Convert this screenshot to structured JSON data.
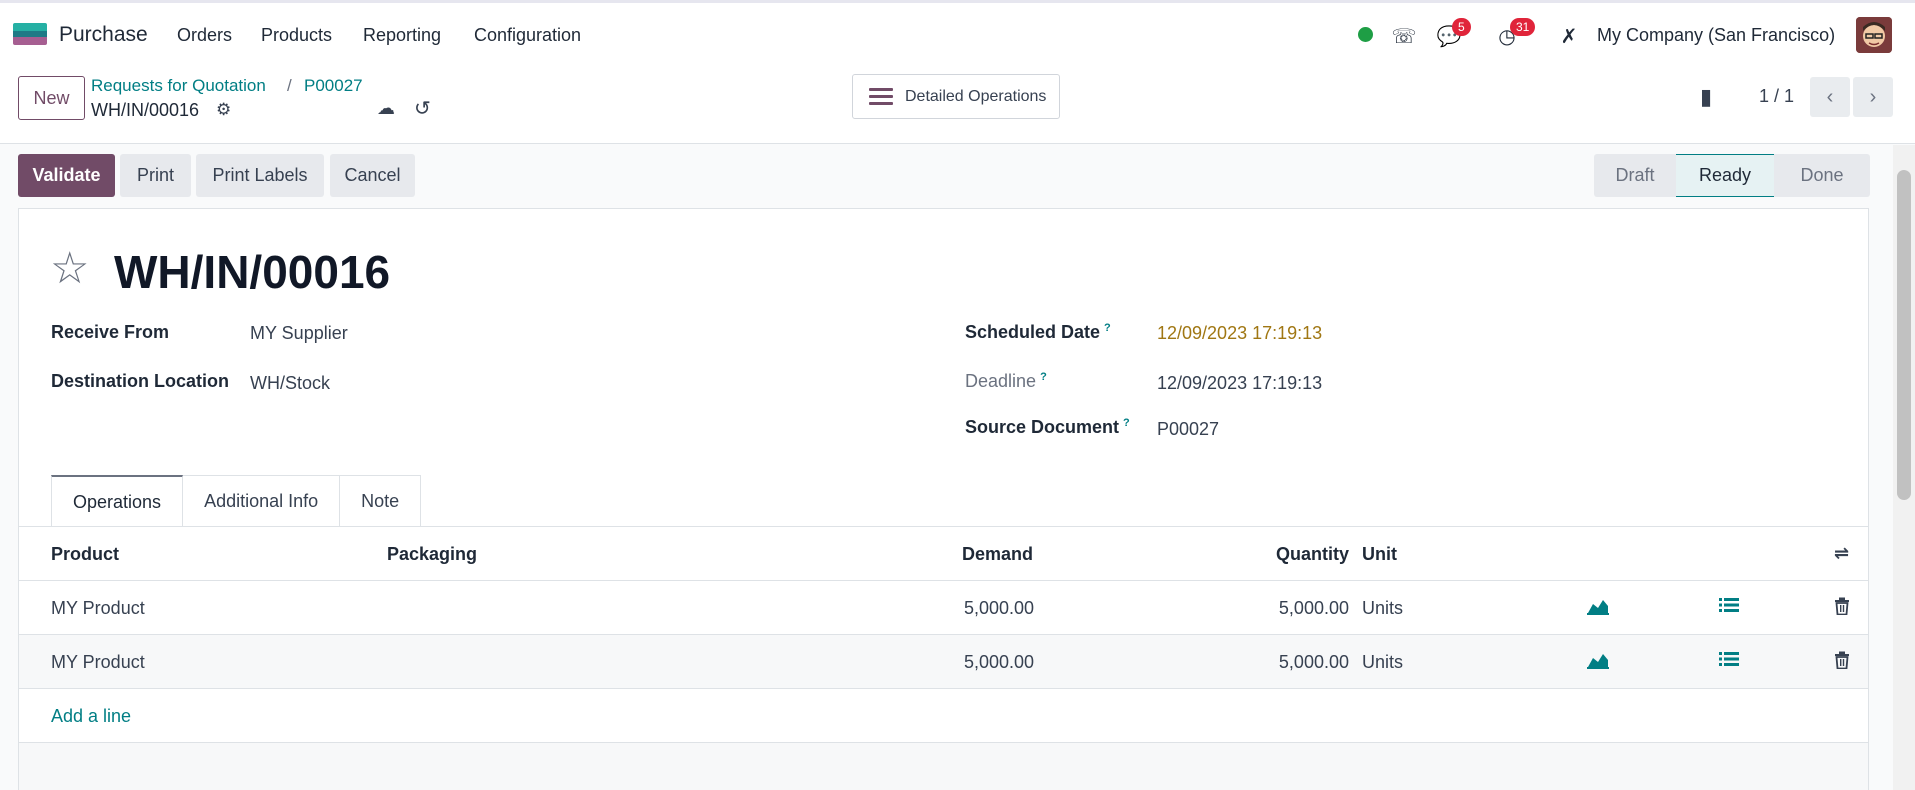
{
  "app": {
    "name": "Purchase"
  },
  "nav": {
    "menus": [
      "Orders",
      "Products",
      "Reporting",
      "Configuration"
    ]
  },
  "systray": {
    "messages_count": "5",
    "activities_count": "31",
    "company": "My Company (San Francisco)"
  },
  "breadcrumb": {
    "parent": "Requests for Quotation",
    "sep": "/",
    "po": "P00027",
    "current": "WH/IN/00016"
  },
  "control": {
    "new_label": "New",
    "detailed_label": "Detailed Operations",
    "pager": "1 / 1"
  },
  "actions": {
    "validate": "Validate",
    "print": "Print",
    "print_labels": "Print Labels",
    "cancel": "Cancel"
  },
  "stages": [
    "Draft",
    "Ready",
    "Done"
  ],
  "record": {
    "title": "WH/IN/00016",
    "receive_from_label": "Receive From",
    "receive_from": "MY Supplier",
    "dest_label": "Destination Location",
    "dest": "WH/Stock",
    "scheduled_label": "Scheduled Date",
    "scheduled": "12/09/2023 17:19:13",
    "deadline_label": "Deadline",
    "deadline": "12/09/2023 17:19:13",
    "source_label": "Source Document",
    "source": "P00027",
    "help_mark": "?"
  },
  "tabs": [
    "Operations",
    "Additional Info",
    "Note"
  ],
  "table": {
    "headers": {
      "product": "Product",
      "packaging": "Packaging",
      "demand": "Demand",
      "quantity": "Quantity",
      "unit": "Unit"
    },
    "rows": [
      {
        "product": "MY Product",
        "demand": "5,000.00",
        "quantity": "5,000.00",
        "unit": "Units"
      },
      {
        "product": "MY Product",
        "demand": "5,000.00",
        "quantity": "5,000.00",
        "unit": "Units"
      }
    ],
    "add_line": "Add a line"
  }
}
